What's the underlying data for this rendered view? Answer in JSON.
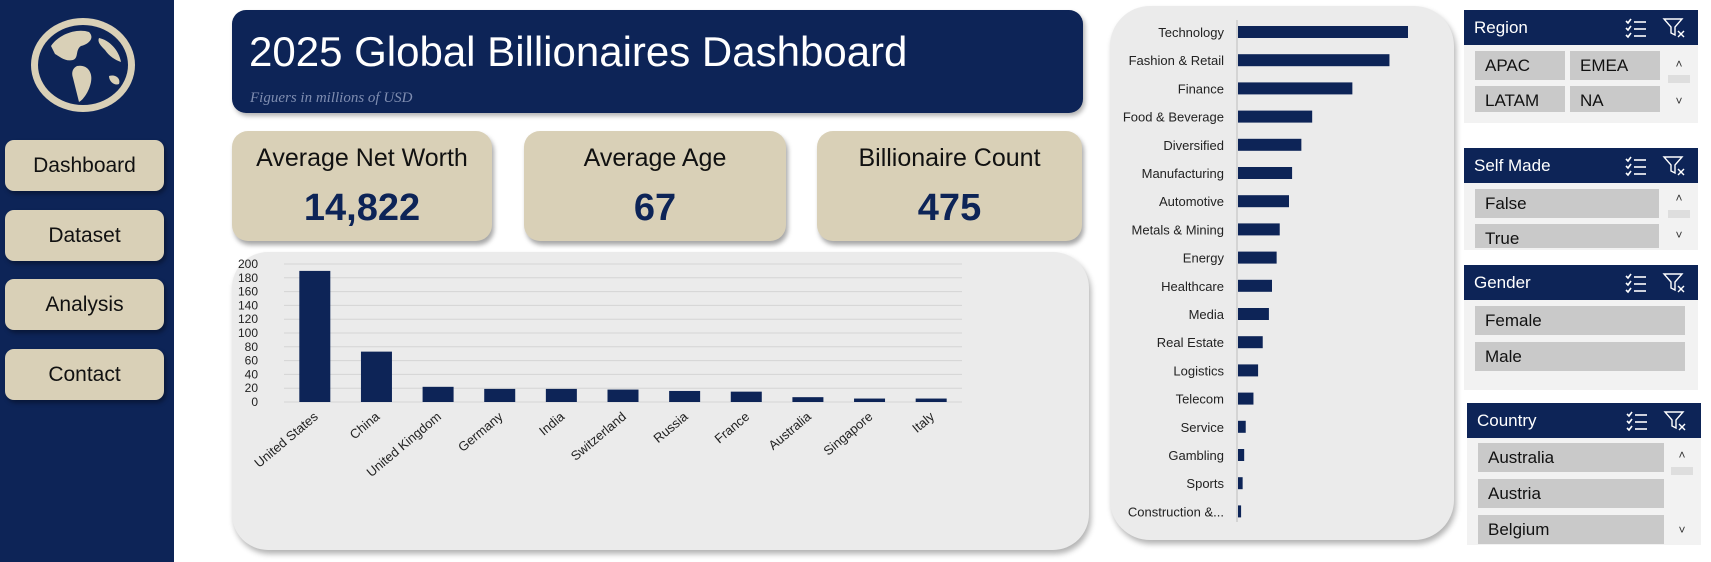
{
  "nav": {
    "items": [
      {
        "label": "Dashboard"
      },
      {
        "label": "Dataset"
      },
      {
        "label": "Analysis"
      },
      {
        "label": "Contact"
      }
    ]
  },
  "header": {
    "title": "2025 Global Billionaires Dashboard",
    "subtitle": "Figuers in millions of USD"
  },
  "kpis": {
    "net_worth": {
      "label": "Average Net Worth",
      "value": "14,822"
    },
    "age": {
      "label": "Average Age",
      "value": "67"
    },
    "count": {
      "label": "Billionaire  Count",
      "value": "475"
    }
  },
  "slicers": {
    "region": {
      "title": "Region",
      "items": [
        "APAC",
        "EMEA",
        "LATAM",
        "NA"
      ]
    },
    "self_made": {
      "title": "Self Made",
      "items": [
        "False",
        "True"
      ]
    },
    "gender": {
      "title": "Gender",
      "items": [
        "Female",
        "Male"
      ]
    },
    "country": {
      "title": "Country",
      "items": [
        "Australia",
        "Austria",
        "Belgium"
      ]
    }
  },
  "colors": {
    "navy": "#0d2457",
    "beige": "#d9d0b7",
    "panel": "#ebebeb"
  },
  "chart_data": [
    {
      "type": "bar",
      "categories": [
        "United States",
        "China",
        "United Kingdom",
        "Germany",
        "India",
        "Switzerland",
        "Russia",
        "France",
        "Australia",
        "Singapore",
        "Italy"
      ],
      "values": [
        190,
        73,
        22,
        19,
        19,
        18,
        16,
        15,
        7,
        5,
        5
      ],
      "ylim": [
        0,
        200
      ],
      "yticks": [
        0,
        20,
        40,
        60,
        80,
        100,
        120,
        140,
        160,
        180,
        200
      ],
      "grid": true
    },
    {
      "type": "bar",
      "orientation": "horizontal",
      "categories": [
        "Technology",
        "Fashion & Retail",
        "Finance",
        "Food & Beverage",
        "Diversified",
        "Manufacturing",
        "Automotive",
        "Metals & Mining",
        "Energy",
        "Healthcare",
        "Media",
        "Real Estate",
        "Logistics",
        "Telecom",
        "Service",
        "Gambling",
        "Sports",
        "Construction &..."
      ],
      "values": [
        110,
        98,
        74,
        48,
        41,
        35,
        33,
        27,
        25,
        22,
        20,
        16,
        13,
        10,
        5,
        4,
        3,
        2
      ]
    }
  ]
}
